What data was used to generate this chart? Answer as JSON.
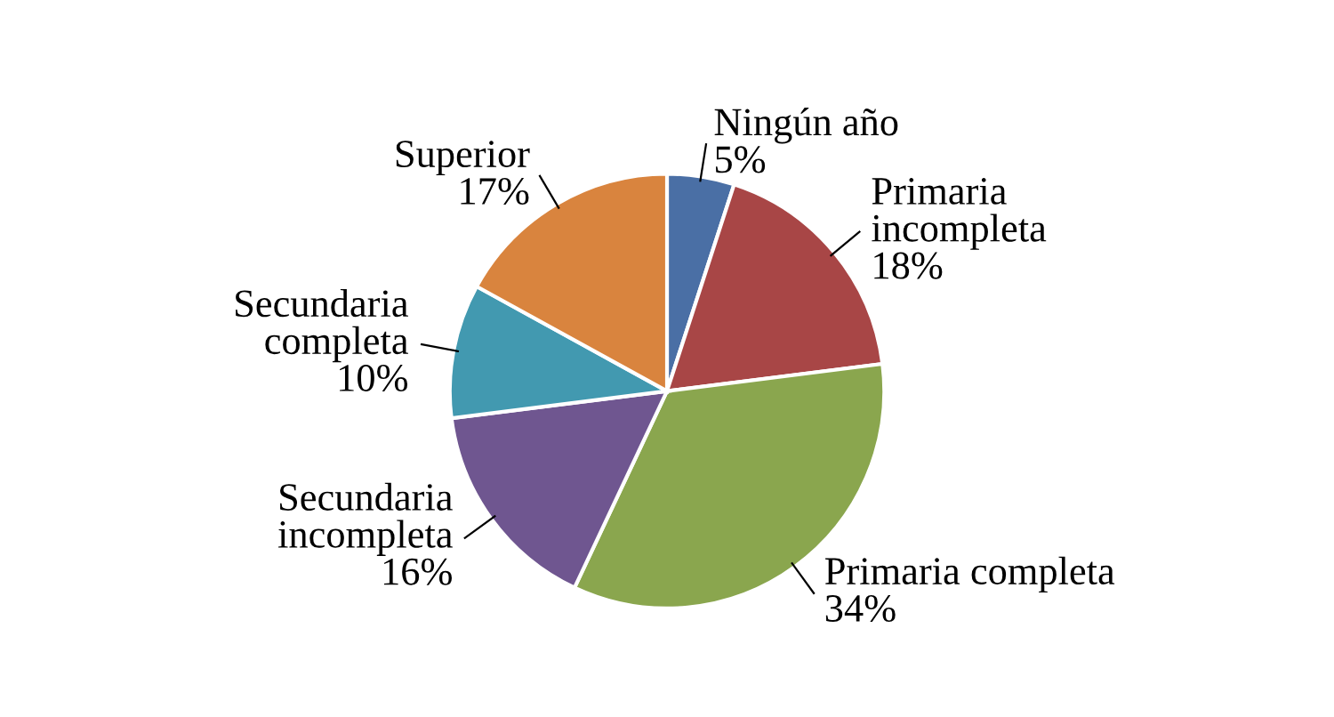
{
  "chart_data": {
    "type": "pie",
    "categories": [
      "Ningún año",
      "Primaria\nincompleta",
      "Primaria completa",
      "Secundaria\nincompleta",
      "Secundaria\ncompleta",
      "Superior"
    ],
    "values": [
      5,
      18,
      34,
      16,
      10,
      17
    ],
    "colors": [
      "#4a6fa5",
      "#a84646",
      "#8aa64e",
      "#6f5690",
      "#4299b0",
      "#d9843e"
    ],
    "value_labels": [
      "5%",
      "18%",
      "34%",
      "16%",
      "10%",
      "17%"
    ],
    "legend": false
  }
}
